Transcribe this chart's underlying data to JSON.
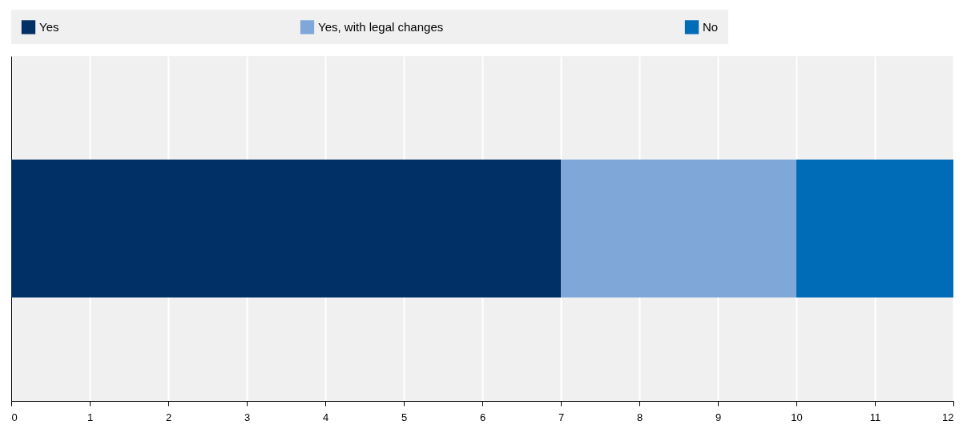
{
  "chart_data": {
    "type": "bar",
    "orientation": "horizontal",
    "stacked": true,
    "categories": [
      null
    ],
    "series": [
      {
        "name": "Yes",
        "color": "#003066",
        "values": [
          7
        ]
      },
      {
        "name": "Yes, with legal changes",
        "color": "#7fa8d9",
        "values": [
          3
        ]
      },
      {
        "name": "No",
        "color": "#006bb6",
        "values": [
          2
        ]
      }
    ],
    "xlim": [
      0,
      12
    ],
    "xticks": [
      0,
      1,
      2,
      3,
      4,
      5,
      6,
      7,
      8,
      9,
      10,
      11,
      12
    ],
    "grid": "x",
    "legend": "top",
    "tick_labels": "x"
  }
}
